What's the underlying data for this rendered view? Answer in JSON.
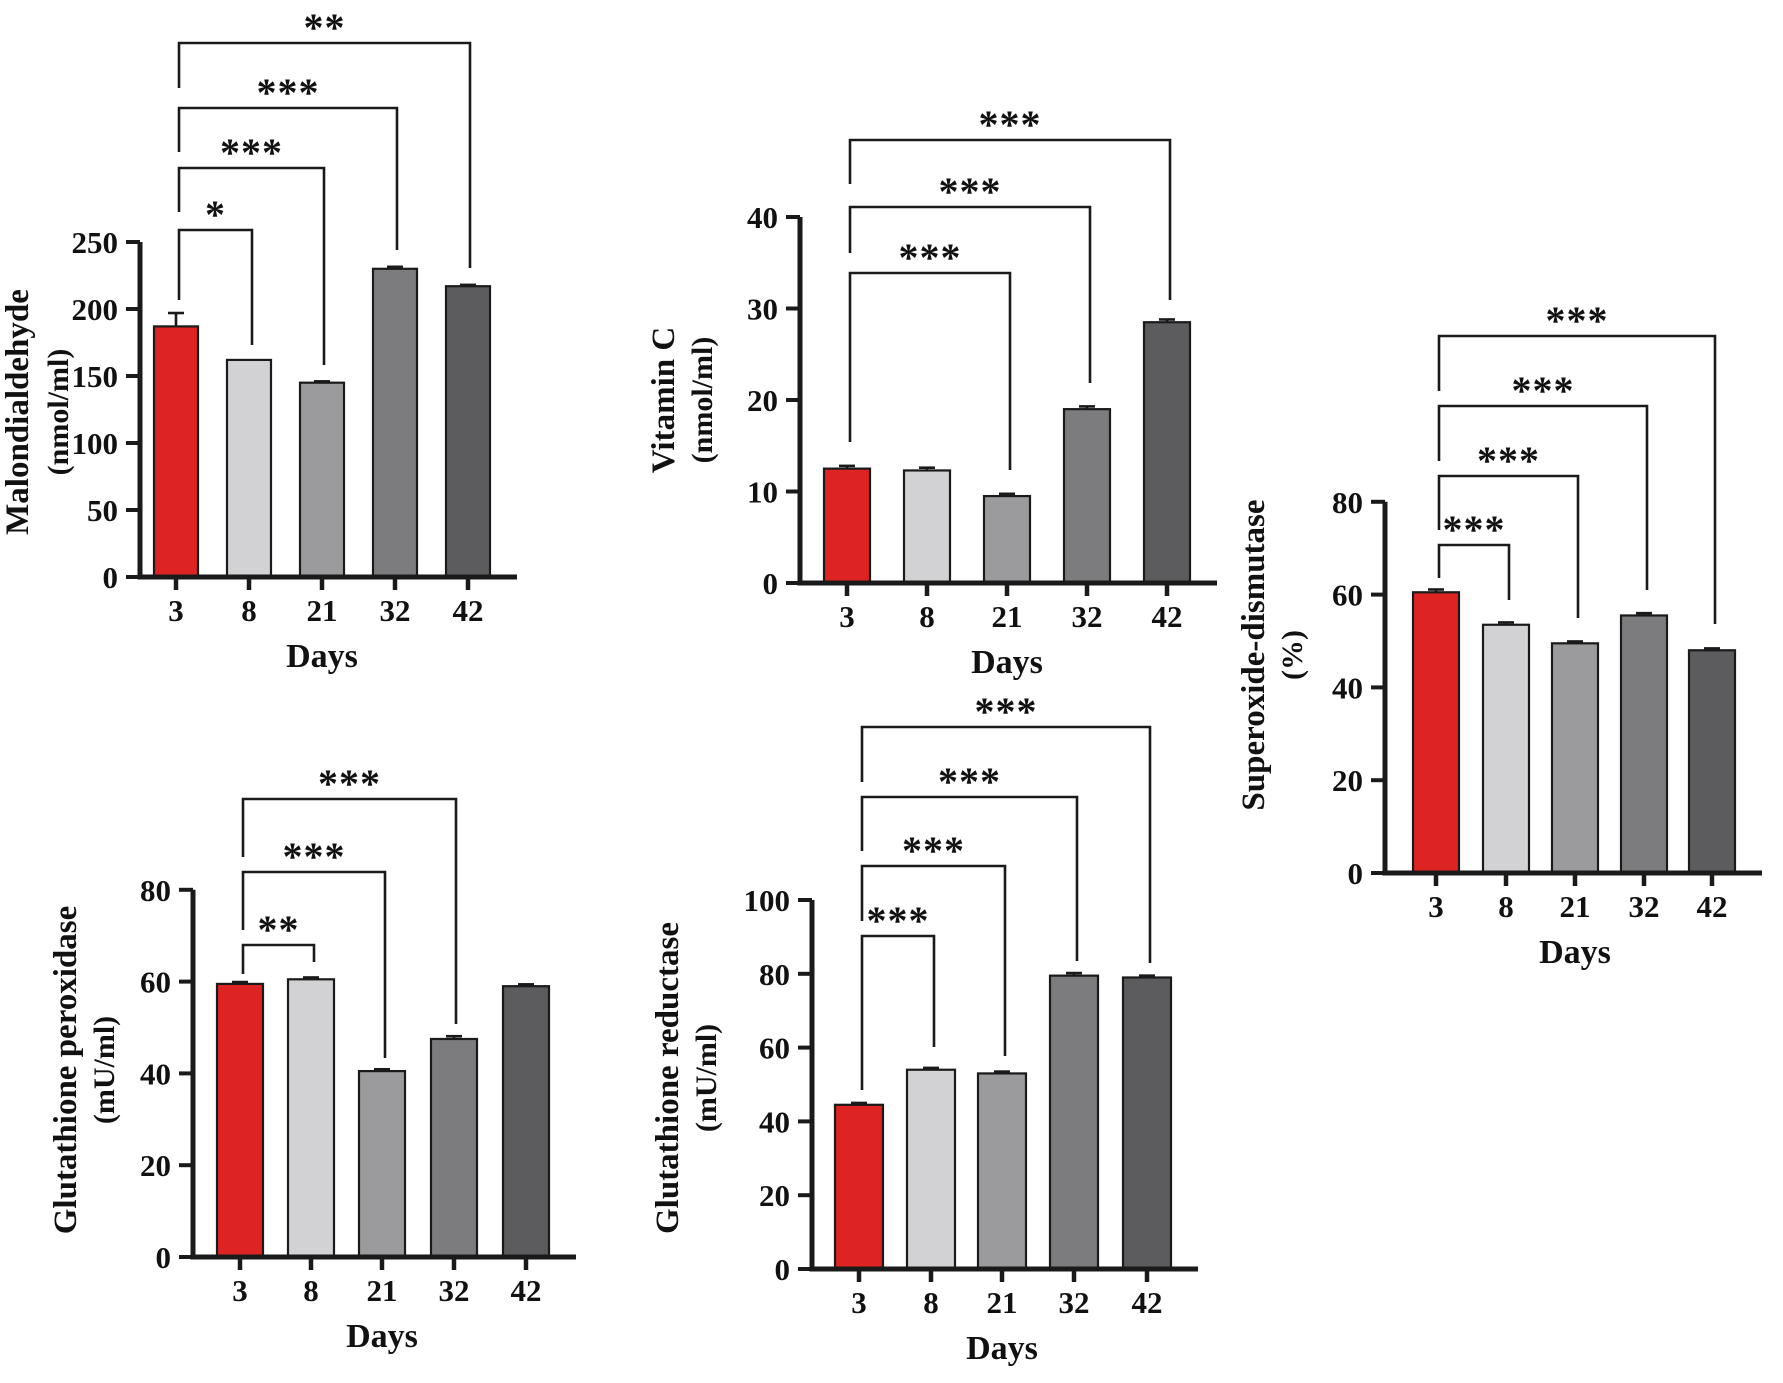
{
  "figure": {
    "background": "#ffffff",
    "text_color": "#111111",
    "axis_color": "#1a1a1a",
    "bar_colors": [
      "#dd2422",
      "#d2d2d4",
      "#9b9b9d",
      "#7c7c7e",
      "#5c5c5e"
    ],
    "highlight_color": "#dd2422",
    "xlabel": "Days"
  },
  "chart_data": [
    {
      "id": "malondialdehyde",
      "type": "bar",
      "title": "Malondialdehyde",
      "ylabel": "Malondialdehyde",
      "unit": "(nmol/ml)",
      "xlabel": "Days",
      "categories": [
        "3",
        "8",
        "21",
        "32",
        "42"
      ],
      "values": [
        187,
        162,
        145,
        230,
        217
      ],
      "errors": [
        10,
        0,
        1,
        1.5,
        1
      ],
      "ylim": [
        0,
        250
      ],
      "yticks": [
        0,
        50,
        100,
        150,
        200,
        250
      ],
      "legend": "none",
      "grid": false,
      "significance": [
        {
          "compare": "3 vs 8",
          "label": "*"
        },
        {
          "compare": "3 vs 21",
          "label": "***"
        },
        {
          "compare": "3 vs 32",
          "label": "***"
        },
        {
          "compare": "3 vs 42",
          "label": "**"
        }
      ]
    },
    {
      "id": "vitamin-c",
      "type": "bar",
      "title": "Vitamin C",
      "ylabel": "Vitamin C",
      "unit": "(nmol/ml)",
      "xlabel": "Days",
      "categories": [
        "3",
        "8",
        "21",
        "32",
        "42"
      ],
      "values": [
        12.5,
        12.3,
        9.5,
        19,
        28.5
      ],
      "errors": [
        0.3,
        0.3,
        0.25,
        0.3,
        0.3
      ],
      "ylim": [
        0,
        40
      ],
      "yticks": [
        0,
        10,
        20,
        30,
        40
      ],
      "legend": "none",
      "grid": false,
      "significance": [
        {
          "compare": "3 vs 21",
          "label": "***"
        },
        {
          "compare": "3 vs 32",
          "label": "***"
        },
        {
          "compare": "3 vs 42",
          "label": "***"
        }
      ]
    },
    {
      "id": "superoxide-dismutase",
      "type": "bar",
      "title": "Superoxide-dismutase",
      "ylabel": "Superoxide-dismutase",
      "unit": "(%)",
      "xlabel": "Days",
      "categories": [
        "3",
        "8",
        "21",
        "32",
        "42"
      ],
      "values": [
        60.5,
        53.5,
        49.5,
        55.5,
        48
      ],
      "errors": [
        0.6,
        0.5,
        0.4,
        0.5,
        0.4
      ],
      "ylim": [
        0,
        80
      ],
      "yticks": [
        0,
        20,
        40,
        60,
        80
      ],
      "legend": "none",
      "grid": false,
      "significance": [
        {
          "compare": "3 vs 8",
          "label": "***"
        },
        {
          "compare": "3 vs 21",
          "label": "***"
        },
        {
          "compare": "3 vs 32",
          "label": "***"
        },
        {
          "compare": "3 vs 42",
          "label": "***"
        }
      ]
    },
    {
      "id": "glutathione-peroxidase",
      "type": "bar",
      "title": "Glutathione peroxidase",
      "ylabel": "Glutathione peroxidase",
      "unit": "(mU/ml)",
      "xlabel": "Days",
      "categories": [
        "3",
        "8",
        "21",
        "32",
        "42"
      ],
      "values": [
        59.5,
        60.5,
        40.5,
        47.5,
        59
      ],
      "errors": [
        0.4,
        0.4,
        0.4,
        0.6,
        0.4
      ],
      "ylim": [
        0,
        80
      ],
      "yticks": [
        0,
        20,
        40,
        60,
        80
      ],
      "legend": "none",
      "grid": false,
      "significance": [
        {
          "compare": "3 vs 8",
          "label": "**"
        },
        {
          "compare": "3 vs 21",
          "label": "***"
        },
        {
          "compare": "3 vs 32",
          "label": "***"
        }
      ]
    },
    {
      "id": "glutathione-reductase",
      "type": "bar",
      "title": "Glutathione reductase",
      "ylabel": "Glutathione reductase",
      "unit": "(mU/ml)",
      "xlabel": "Days",
      "categories": [
        "3",
        "8",
        "21",
        "32",
        "42"
      ],
      "values": [
        44.5,
        54,
        53,
        79.5,
        79
      ],
      "errors": [
        0.5,
        0.5,
        0.5,
        0.7,
        0.5
      ],
      "ylim": [
        0,
        100
      ],
      "yticks": [
        0,
        20,
        40,
        60,
        80,
        100
      ],
      "legend": "none",
      "grid": false,
      "significance": [
        {
          "compare": "3 vs 8",
          "label": "***"
        },
        {
          "compare": "3 vs 21",
          "label": "***"
        },
        {
          "compare": "3 vs 32",
          "label": "***"
        },
        {
          "compare": "3 vs 42",
          "label": "***"
        }
      ]
    }
  ]
}
